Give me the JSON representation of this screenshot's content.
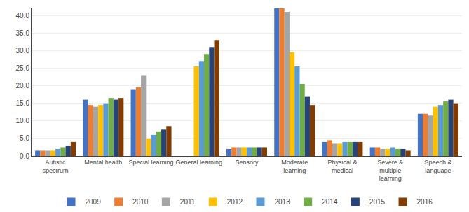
{
  "chart_data": {
    "type": "bar",
    "categories": [
      "Autistic\nspectrum",
      "Mental health",
      "Special learning",
      "General learning",
      "Sensory",
      "Moderate\nlearning",
      "Physical &\nmedical",
      "Severe &\nmultiple\nlearning",
      "Speech &\nlanguage"
    ],
    "series": [
      {
        "name": "2009",
        "color": "#4472C4",
        "values": [
          1.5,
          16.0,
          19.0,
          0.0,
          2.0,
          42.0,
          4.0,
          2.5,
          12.0
        ]
      },
      {
        "name": "2010",
        "color": "#ED7D31",
        "values": [
          1.5,
          14.5,
          19.5,
          0.0,
          2.5,
          42.0,
          4.5,
          2.5,
          12.0
        ]
      },
      {
        "name": "2011",
        "color": "#A5A5A5",
        "values": [
          1.5,
          14.0,
          23.0,
          0.0,
          2.5,
          41.0,
          3.5,
          2.0,
          11.5
        ]
      },
      {
        "name": "2012",
        "color": "#FFC000",
        "values": [
          1.5,
          14.5,
          5.0,
          25.5,
          2.5,
          29.5,
          3.5,
          2.0,
          14.0
        ]
      },
      {
        "name": "2013",
        "color": "#5B9BD5",
        "values": [
          2.0,
          15.0,
          6.0,
          27.0,
          2.5,
          25.5,
          4.0,
          2.5,
          14.5
        ]
      },
      {
        "name": "2014",
        "color": "#70AD47",
        "values": [
          2.5,
          16.5,
          7.0,
          29.0,
          2.5,
          20.5,
          4.0,
          2.0,
          15.5
        ]
      },
      {
        "name": "2015",
        "color": "#264478",
        "values": [
          3.0,
          16.0,
          7.5,
          31.0,
          2.5,
          17.0,
          4.0,
          2.0,
          16.0
        ]
      },
      {
        "name": "2016",
        "color": "#833C00",
        "values": [
          4.0,
          16.5,
          8.5,
          33.0,
          2.5,
          14.5,
          4.0,
          1.5,
          15.0
        ]
      }
    ],
    "ylim": [
      0,
      42
    ],
    "yticks": [
      {
        "value": 0,
        "label": "0.0"
      },
      {
        "value": 5,
        "label": "5.0"
      },
      {
        "value": 10,
        "label": "10.0"
      },
      {
        "value": 15,
        "label": "15.0"
      },
      {
        "value": 20,
        "label": "20.0"
      },
      {
        "value": 25,
        "label": "25.0"
      },
      {
        "value": 30,
        "label": "30.0"
      },
      {
        "value": 35,
        "label": "35.0"
      },
      {
        "value": 40,
        "label": "40.0"
      }
    ],
    "grid": true,
    "legend": "bottom"
  }
}
